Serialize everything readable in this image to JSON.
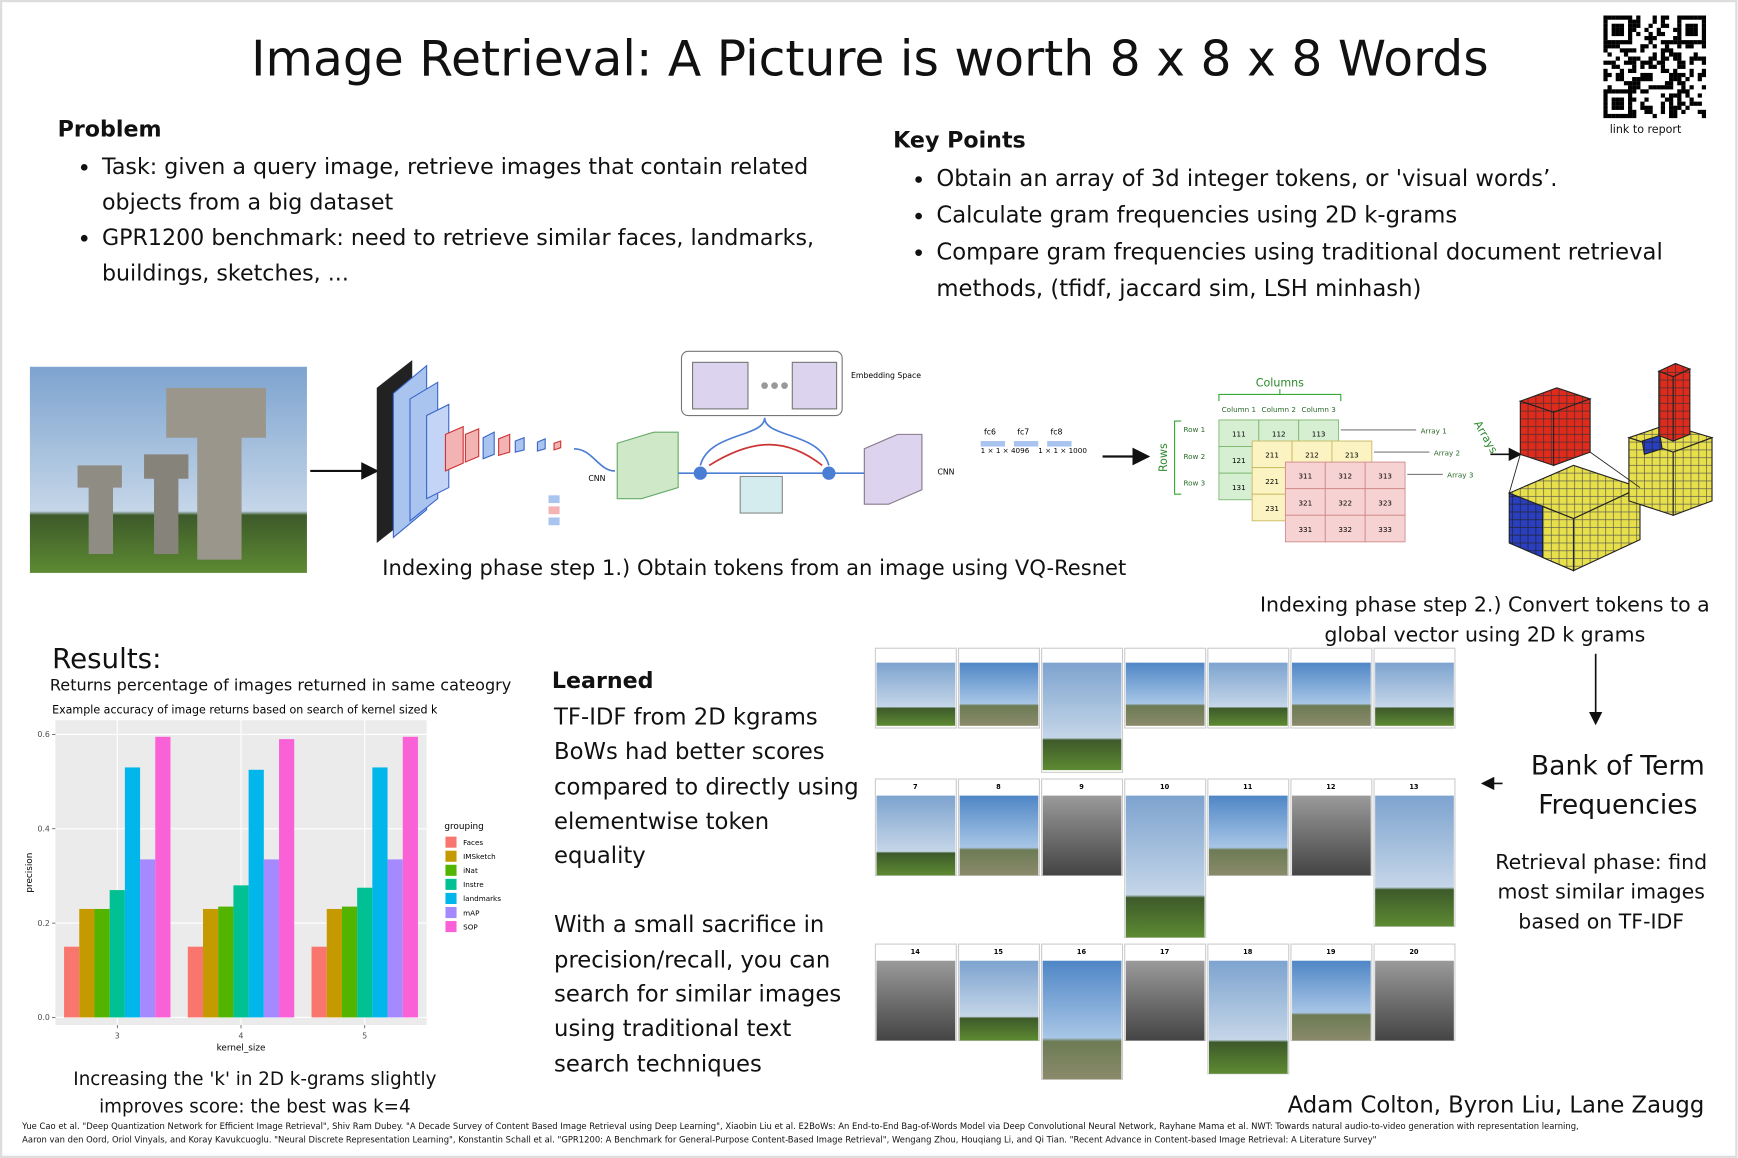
{
  "header": {
    "title": "Image Retrieval: A Picture is worth 8 x 8 x 8 Words",
    "qr_caption": "link to report"
  },
  "problem": {
    "heading": "Problem",
    "bullets": [
      "Task: given a query image, retrieve images that contain related objects from a big dataset",
      "GPR1200 benchmark: need to retrieve similar faces, landmarks, buildings, sketches, ..."
    ]
  },
  "key_points": {
    "heading": "Key Points",
    "bullets": [
      "Obtain an array of 3d integer tokens, or 'visual words’.",
      "Calculate gram frequencies using 2D k-grams",
      "Compare gram frequencies using traditional document retrieval methods, (tfidf, jaccard sim, LSH minhash)"
    ]
  },
  "indexing": {
    "step1_caption": "Indexing phase step 1.) Obtain tokens from an image using VQ-Resnet",
    "step2_caption": "Indexing phase step 2.) Convert tokens to a global vector using 2D k grams"
  },
  "diagram": {
    "embedding_label": "Embedding Space",
    "cnn_label": "CNN",
    "fc_labels": [
      "fc6",
      "fc7",
      "fc8"
    ],
    "fc_sizes": [
      "1 × 1 × 4096",
      "1 × 1 × 1000"
    ]
  },
  "token_table": {
    "columns_label": "Columns",
    "columns": [
      "Column 1",
      "Column 2",
      "Column 3"
    ],
    "rows_label": "Rows",
    "rows": [
      "Row 1",
      "Row 2",
      "Row 3"
    ],
    "arrays_label": "Arrays",
    "arrays": [
      "Array 1",
      "Array 2",
      "Array 3"
    ],
    "layers": [
      [
        [
          "111",
          "112",
          "113"
        ],
        [
          "121"
        ],
        [
          "131"
        ]
      ],
      [
        [
          "211",
          "212",
          "213"
        ],
        [
          "221"
        ],
        [
          "231"
        ]
      ],
      [
        [
          "311",
          "312",
          "313"
        ],
        [
          "321",
          "322",
          "323"
        ],
        [
          "331",
          "332",
          "333"
        ]
      ]
    ]
  },
  "results": {
    "heading": "Results:",
    "subtitle": "Returns percentage of images returned in same cateogry",
    "caption": "Increasing the 'k' in 2D k-grams slightly improves score: the best was k=4"
  },
  "chart_data": {
    "type": "bar",
    "title": "Example accuracy of image returns based on search of kernel sized k",
    "x_label": "kernel_size",
    "y_label": "precision",
    "legend_title": "grouping",
    "categories": [
      "3",
      "4",
      "5"
    ],
    "series": [
      {
        "name": "Faces",
        "color": "#F8766D",
        "values": [
          0.15,
          0.15,
          0.15
        ]
      },
      {
        "name": "IMSketch",
        "color": "#C49A00",
        "values": [
          0.23,
          0.23,
          0.23
        ]
      },
      {
        "name": "iNat",
        "color": "#53B400",
        "values": [
          0.23,
          0.235,
          0.235
        ]
      },
      {
        "name": "Instre",
        "color": "#00C094",
        "values": [
          0.27,
          0.28,
          0.275
        ]
      },
      {
        "name": "landmarks",
        "color": "#00B6EB",
        "values": [
          0.53,
          0.525,
          0.53
        ]
      },
      {
        "name": "mAP",
        "color": "#A58AFF",
        "values": [
          0.335,
          0.335,
          0.335
        ]
      },
      {
        "name": "SOP",
        "color": "#FB61D7",
        "values": [
          0.595,
          0.59,
          0.595
        ]
      }
    ],
    "ylim": [
      -0.016,
      0.63
    ],
    "yticks": [
      {
        "value": 0,
        "label": "0.0"
      },
      0.2,
      0.4,
      0.6
    ],
    "grid": true,
    "legend": "right"
  },
  "learned": {
    "heading": "Learned",
    "paragraphs": [
      "TF-IDF from 2D kgrams BoWs had better scores compared to directly using elementwise token equality",
      "With a small sacrifice in precision/recall, you can search for similar images using traditional text search techniques"
    ]
  },
  "retrieval": {
    "bank_label": "Bank of Term Frequencies",
    "description": "Retrieval phase: find most similar images based on TF-IDF",
    "result_ids": [
      7,
      8,
      9,
      10,
      11,
      12,
      13,
      14,
      15,
      16,
      17,
      18,
      19,
      20
    ]
  },
  "authors": "Adam Colton, Byron Liu, Lane Zaugg",
  "references": [
    "Yue Cao et al. \"Deep Quantization Network for Efficient Image Retrieval\",  Shiv Ram Dubey. \"A Decade Survey of Content Based Image Retrieval using Deep Learning\",  Xiaobin Liu et al. E2BoWs: An End-to-End Bag-of-Words Model via Deep Convolutional Neural Network, Rayhane Mama et al. NWT: Towards natural audio-to-video generation with representation learning,",
    "Aaron van den Oord, Oriol Vinyals, and Koray Kavukcuoglu. \"Neural Discrete Representation Learning\", Konstantin Schall et al. \"GPR1200: A Benchmark for General-Purpose Content-Based Image Retrieval\", Wengang Zhou, Houqiang Li, and Qi Tian. \"Recent Advance in Content-based Image Retrieval: A Literature Survey\""
  ]
}
